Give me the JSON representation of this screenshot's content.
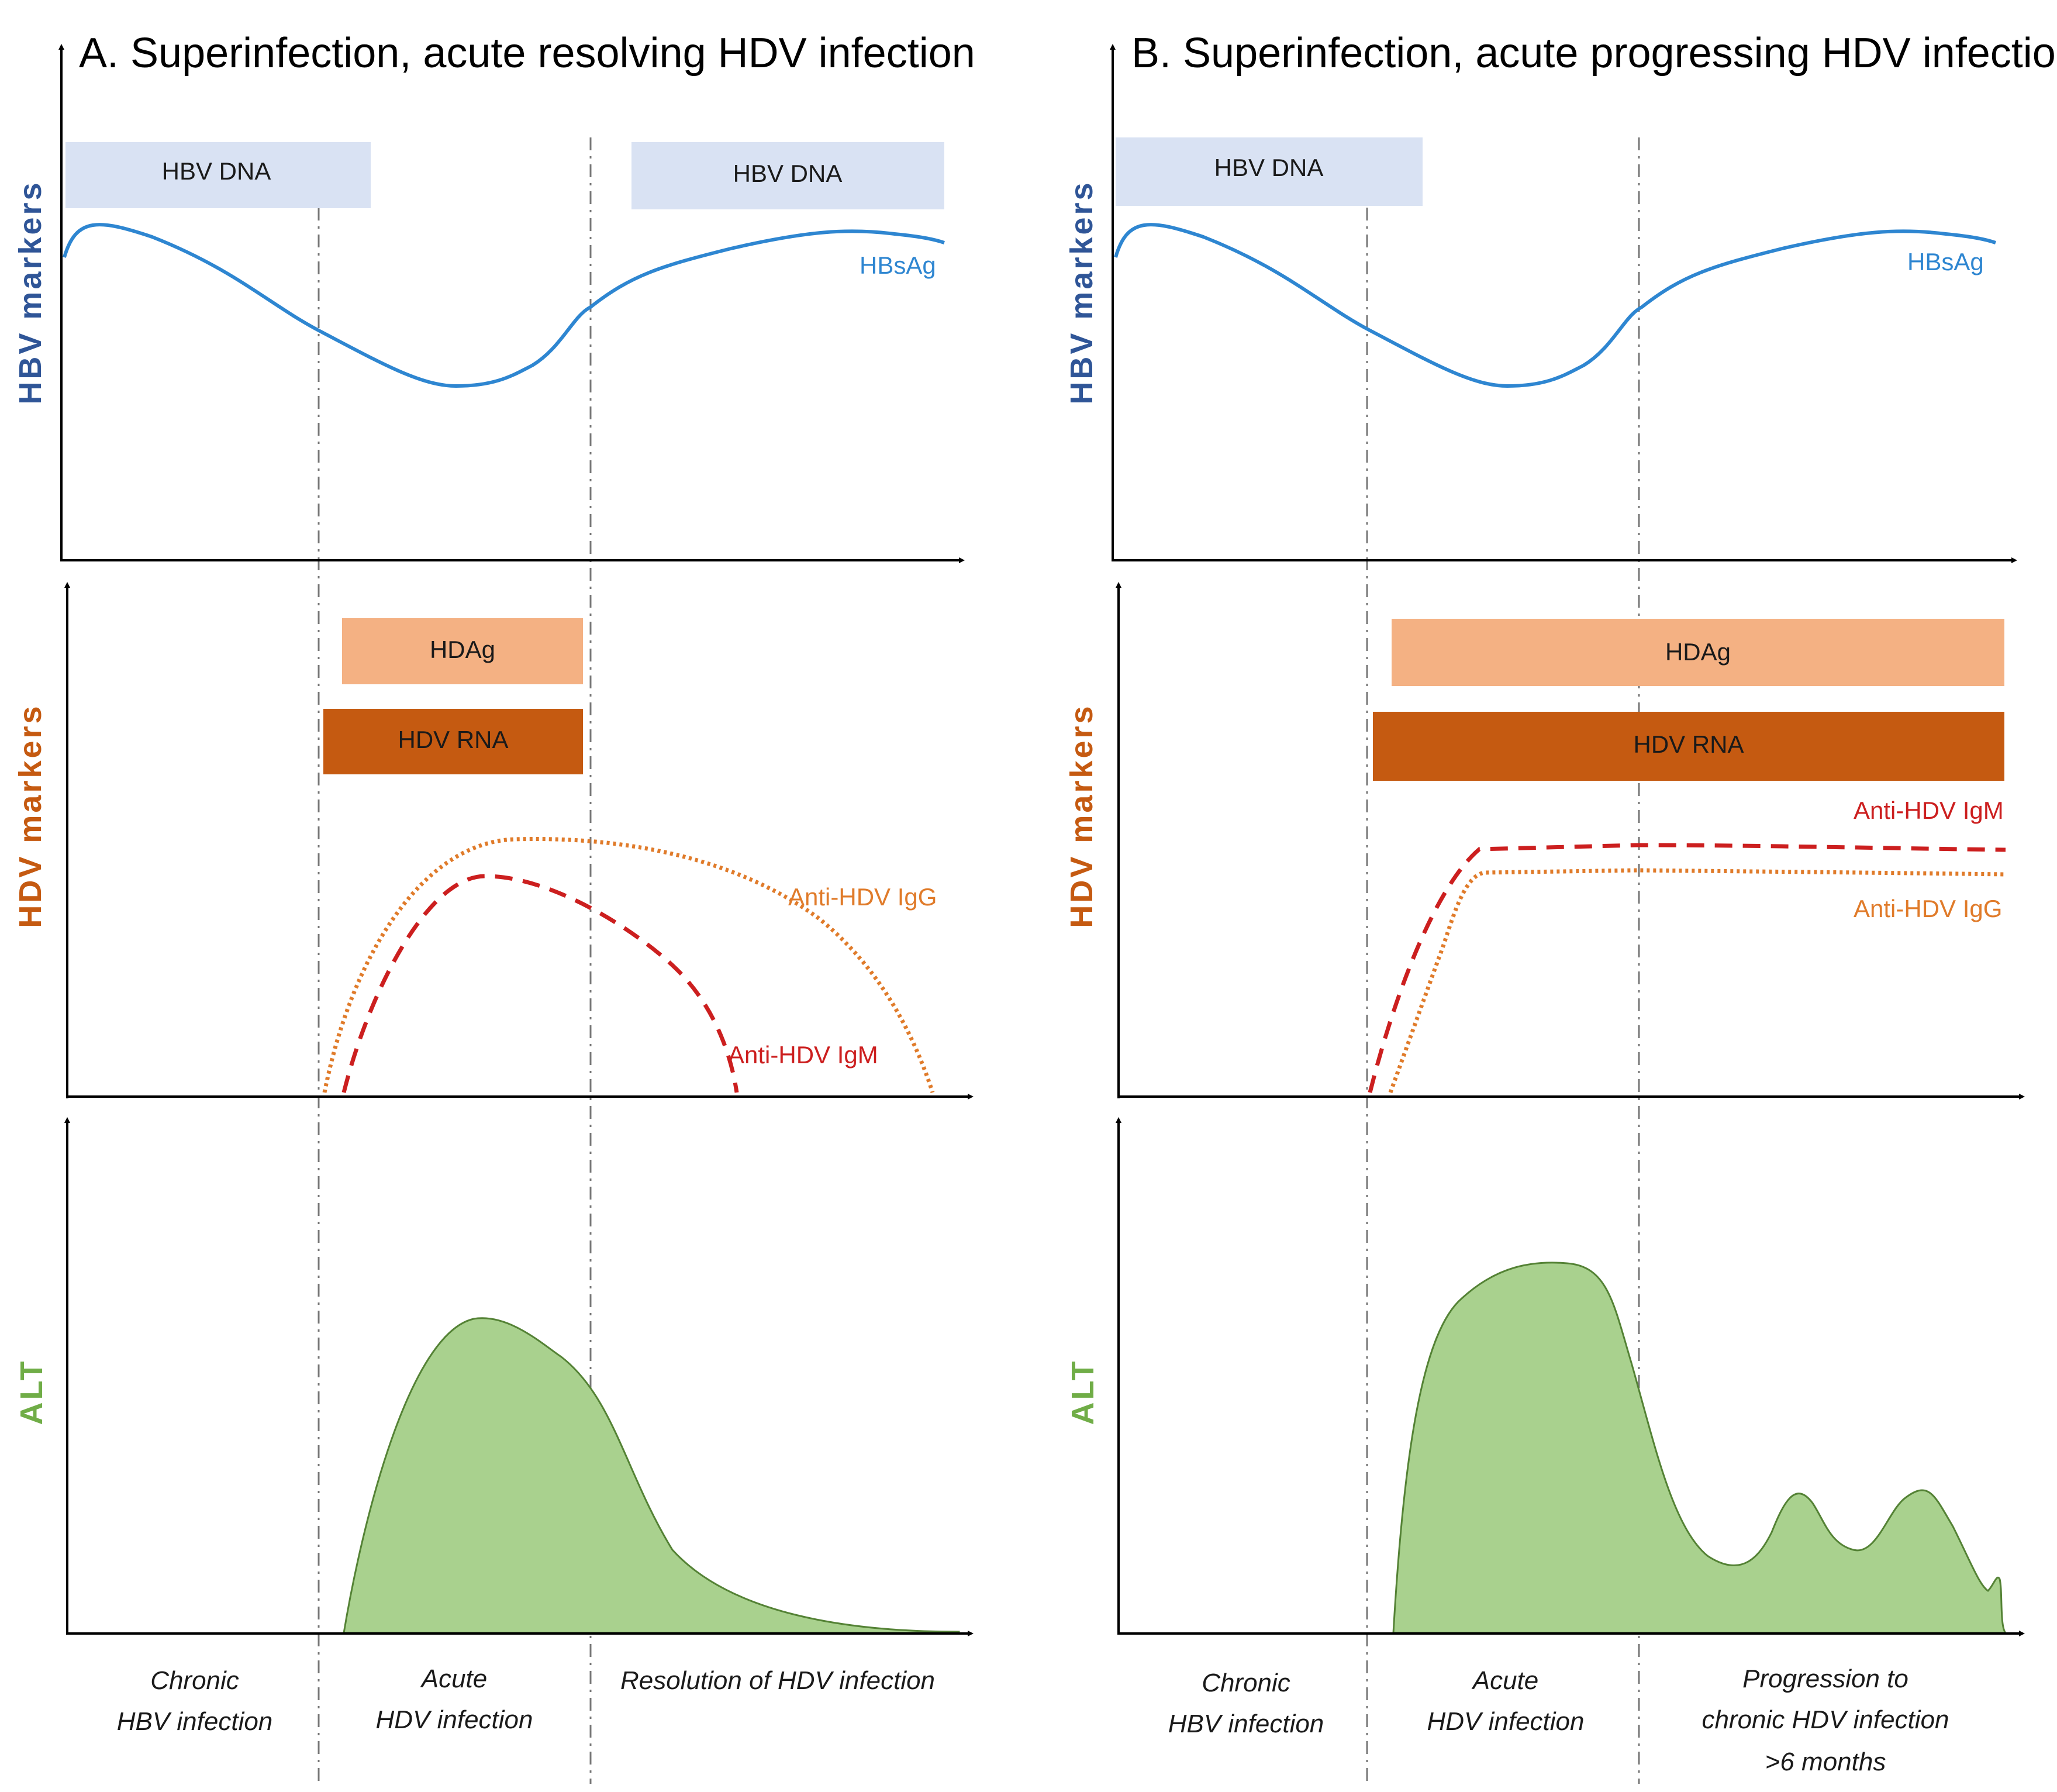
{
  "colors": {
    "hbv_dna_box": "#d9e2f3",
    "hbsag_curve": "#2e86d1",
    "hbv_axis_label": "#2f5597",
    "hdag_box": "#f4b183",
    "hdv_rna_box": "#c55a11",
    "hdv_axis_label": "#c55a11",
    "igg_curve": "#e07b2a",
    "igm_curve": "#cc1f1f",
    "alt_fill": "#a9d18e",
    "alt_stroke": "#548235",
    "alt_axis_label": "#70ad47"
  },
  "panel_a": {
    "title": "A.   Superinfection, acute resolving HDV infection",
    "hbv_axis_label": "HBV markers",
    "hdv_axis_label": "HDV markers",
    "alt_axis_label": "ALT",
    "hbv_dna_label_1": "HBV DNA",
    "hbv_dna_label_2": "HBV DNA",
    "hbsag_label": "HBsAg",
    "hdag_label": "HDAg",
    "hdv_rna_label": "HDV RNA",
    "igg_label": "Anti-HDV IgG",
    "igm_label": "Anti-HDV IgM",
    "phase_1": [
      "Chronic",
      "HBV infection"
    ],
    "phase_2": [
      "Acute",
      "HDV infection"
    ],
    "phase_3": [
      "Resolution of HDV infection"
    ]
  },
  "panel_b": {
    "title": "B. Superinfection, acute progressing HDV infection",
    "hbv_axis_label": "HBV markers",
    "hdv_axis_label": "HDV markers",
    "alt_axis_label": "ALT",
    "hbv_dna_label": "HBV DNA",
    "hbsag_label": "HBsAg",
    "hdag_label": "HDAg",
    "hdv_rna_label": "HDV RNA",
    "igm_label": "Anti-HDV IgM",
    "igg_label": "Anti-HDV IgG",
    "phase_1": [
      "Chronic",
      "HBV infection"
    ],
    "phase_2": [
      "Acute",
      "HDV infection"
    ],
    "phase_3": [
      "Progression to",
      "chronic HDV infection",
      ">6 months"
    ]
  }
}
